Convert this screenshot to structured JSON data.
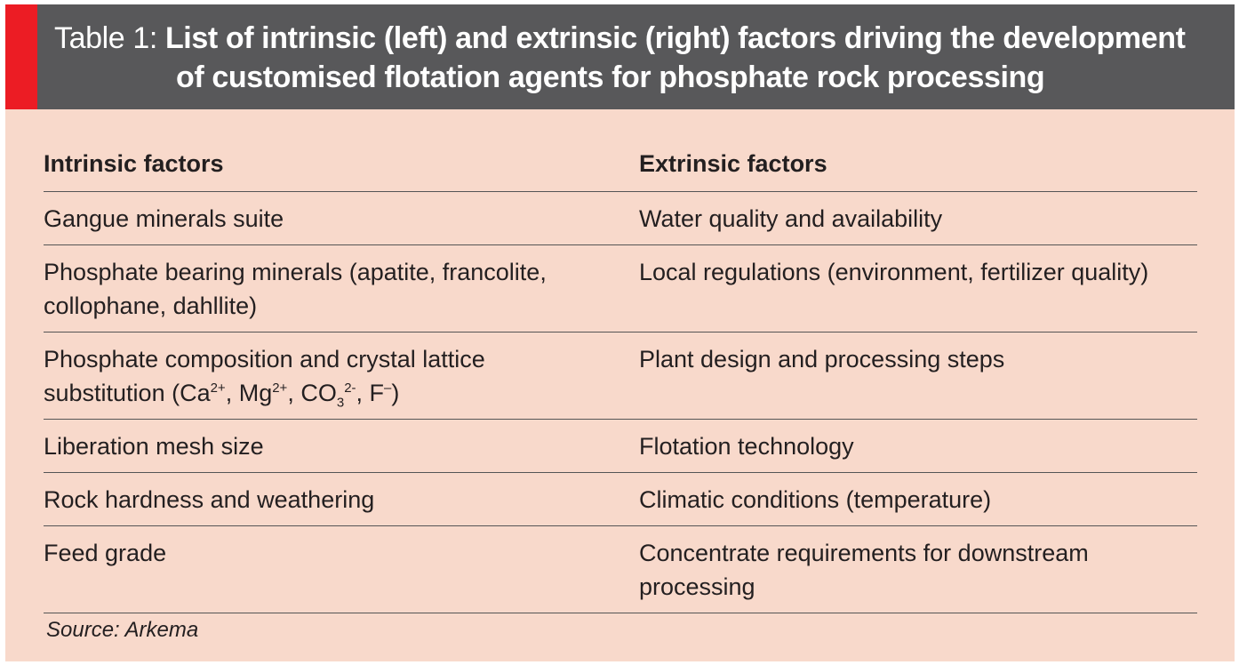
{
  "title": {
    "label": "Table 1:",
    "line1": "List of intrinsic (left) and extrinsic (right) factors driving the development",
    "line2": "of customised flotation agents for phosphate rock processing"
  },
  "headers": {
    "intrinsic": "Intrinsic factors",
    "extrinsic": "Extrinsic factors"
  },
  "rows": [
    {
      "intrinsic": "Gangue minerals suite",
      "extrinsic": "Water quality and availability"
    },
    {
      "intrinsic": "Phosphate bearing minerals (apatite, francolite, collophane, dahllite)",
      "extrinsic": "Local regulations (environment, fertilizer quality)"
    },
    {
      "intrinsic_line1": "Phosphate composition and crystal lattice",
      "intrinsic_prefix": "substitution (Ca",
      "ca_charge": "2+",
      "sep1": ", Mg",
      "mg_charge": "2+",
      "sep2": ", CO",
      "co3_sub": "3",
      "co3_charge": "2-",
      "sep3": ", F",
      "f_charge": "–",
      "intrinsic_suffix": ")",
      "extrinsic": "Plant design and processing steps"
    },
    {
      "intrinsic": "Liberation mesh size",
      "extrinsic": "Flotation technology"
    },
    {
      "intrinsic": "Rock hardness and weathering",
      "extrinsic": "Climatic conditions (temperature)"
    },
    {
      "intrinsic": "Feed grade",
      "extrinsic": "Concentrate requirements for downstream processing"
    }
  ],
  "source": "Source: Arkema",
  "colors": {
    "header_bg": "#58585a",
    "accent": "#ec1c24",
    "body_bg": "#f8d9cb"
  }
}
